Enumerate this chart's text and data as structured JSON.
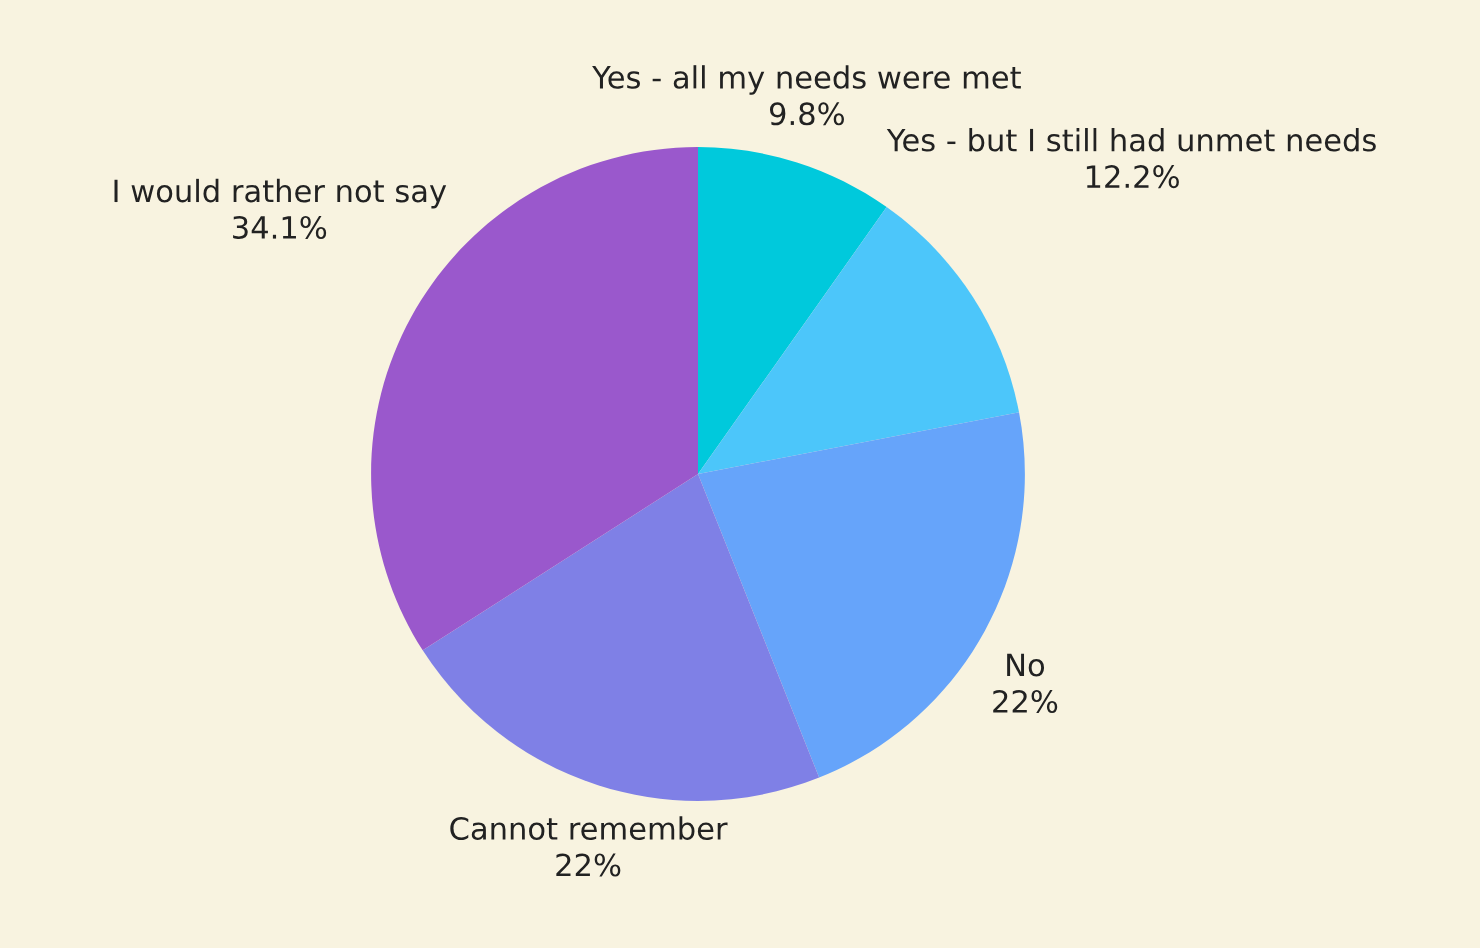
{
  "chart_data": {
    "type": "pie",
    "categories": [
      "Yes - all my needs were met",
      "Yes - but I still had unmet needs",
      "No",
      "Cannot remember",
      "I would rather not say"
    ],
    "values": [
      9.8,
      12.2,
      22,
      22,
      34.1
    ],
    "value_labels": [
      "9.8%",
      "12.2%",
      "22%",
      "22%",
      "34.1%"
    ],
    "colors": [
      "#00c9dc",
      "#4cc6fa",
      "#66a4fa",
      "#7f80e6",
      "#9a58cc"
    ],
    "legend": false
  }
}
